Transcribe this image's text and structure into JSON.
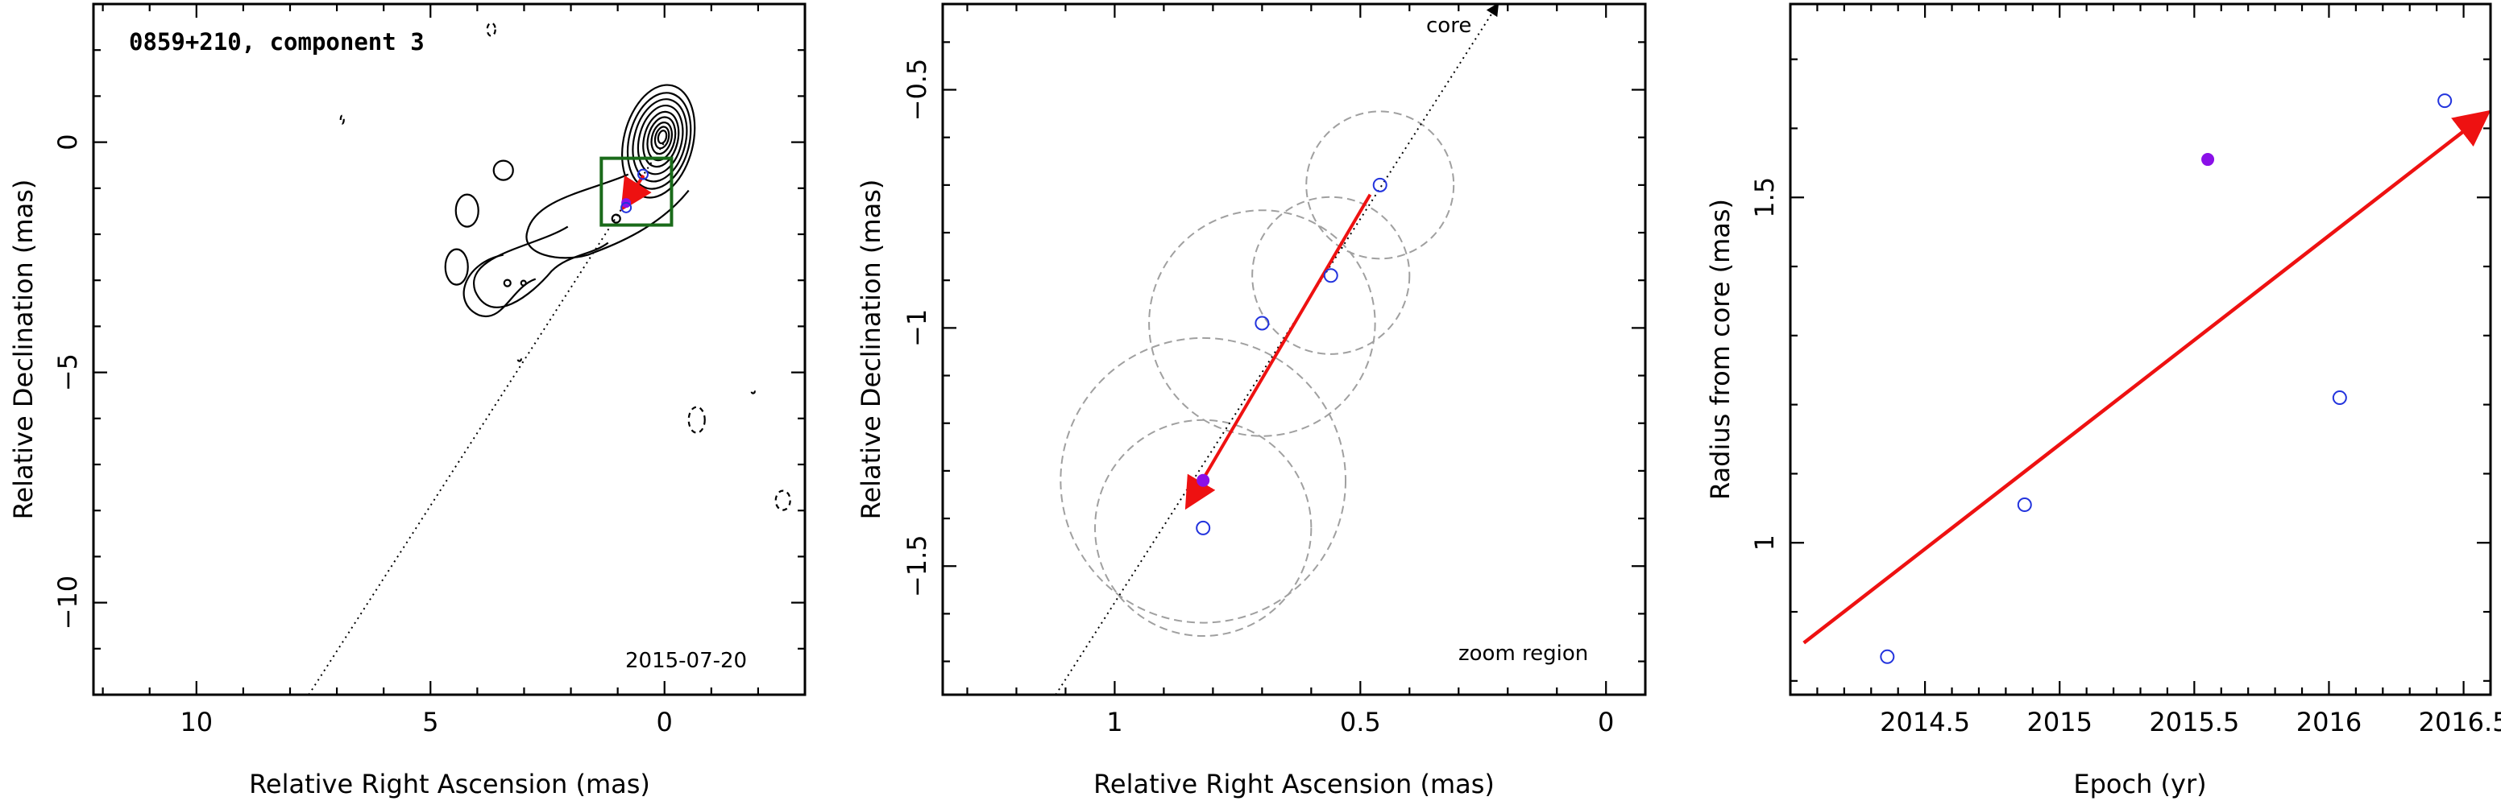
{
  "chart_data": [
    {
      "type": "scatter",
      "panel": "map",
      "title": "0859+210, component 3",
      "date_label": "2015-07-20",
      "xlabel": "Relative Right Ascension (mas)",
      "ylabel": "Relative Declination (mas)",
      "xlim": [
        12.2,
        -3.0
      ],
      "ylim": [
        -12.0,
        3.0
      ],
      "xticks": [
        10,
        5,
        0
      ],
      "yticks": [
        0,
        -5,
        -10
      ],
      "jet_axis": {
        "from": [
          7.6,
          -12.0
        ],
        "to": [
          0.0,
          0.0
        ],
        "style": "dotted"
      },
      "zoom_box": {
        "x": [
          1.35,
          -0.15
        ],
        "y": [
          -0.35,
          -1.8
        ],
        "color": "#1a6b1a"
      },
      "core": {
        "x": 0.0,
        "y": 0.0
      },
      "points": [
        {
          "x": 0.82,
          "y": -1.32,
          "kind": "filled"
        },
        {
          "x": 0.82,
          "y": -1.42,
          "kind": "open"
        },
        {
          "x": 0.46,
          "y": -0.7,
          "kind": "open"
        }
      ],
      "motion": {
        "from": [
          0.45,
          -0.72
        ],
        "to": [
          0.86,
          -1.38
        ]
      }
    },
    {
      "type": "scatter",
      "panel": "zoom",
      "annotations": [
        "core",
        "zoom region"
      ],
      "xlabel": "Relative Right Ascension (mas)",
      "ylabel": "Relative Declination (mas)",
      "xlim": [
        1.35,
        -0.08
      ],
      "ylim": [
        -1.77,
        -0.32
      ],
      "xticks": [
        1,
        0.5,
        0
      ],
      "yticks": [
        -0.5,
        -1,
        -1.5
      ],
      "jet_axis": {
        "from": [
          1.12,
          -1.77
        ],
        "to": [
          0.22,
          -0.32
        ],
        "style": "dotted",
        "label": "core"
      },
      "positions": [
        {
          "x": 0.46,
          "y": -0.7,
          "radius": 0.15,
          "kind": "open"
        },
        {
          "x": 0.56,
          "y": -0.89,
          "radius": 0.16,
          "kind": "open"
        },
        {
          "x": 0.7,
          "y": -0.99,
          "radius": 0.23,
          "kind": "open"
        },
        {
          "x": 0.82,
          "y": -1.32,
          "radius": 0.29,
          "kind": "filled"
        },
        {
          "x": 0.82,
          "y": -1.42,
          "radius": 0.22,
          "kind": "open"
        }
      ],
      "motion": {
        "from": [
          0.48,
          -0.72
        ],
        "to": [
          0.85,
          -1.37
        ]
      }
    },
    {
      "type": "scatter",
      "panel": "radius",
      "xlabel": "Epoch (yr)",
      "ylabel": "Radius from core (mas)",
      "xlim": [
        2014.0,
        2016.6
      ],
      "ylim": [
        0.78,
        1.78
      ],
      "xticks": [
        2014.5,
        2015,
        2015.5,
        2016,
        2016.5
      ],
      "yticks": [
        1,
        1.5
      ],
      "points": [
        {
          "x": 2014.36,
          "y": 0.835,
          "kind": "open"
        },
        {
          "x": 2014.87,
          "y": 1.055,
          "kind": "open"
        },
        {
          "x": 2015.55,
          "y": 1.555,
          "kind": "filled"
        },
        {
          "x": 2016.04,
          "y": 1.21,
          "kind": "open"
        },
        {
          "x": 2016.43,
          "y": 1.64,
          "kind": "open"
        }
      ],
      "trend": {
        "x": [
          2014.05,
          2016.58
        ],
        "y": [
          0.855,
          1.62
        ]
      }
    }
  ],
  "colors": {
    "axis": "#000000",
    "open_marker": "#2233dd",
    "filled_marker": "#8a10e8",
    "arrow": "#ee1111",
    "zoom_box": "#1a6b1a",
    "circles": "#a0a0a0"
  }
}
